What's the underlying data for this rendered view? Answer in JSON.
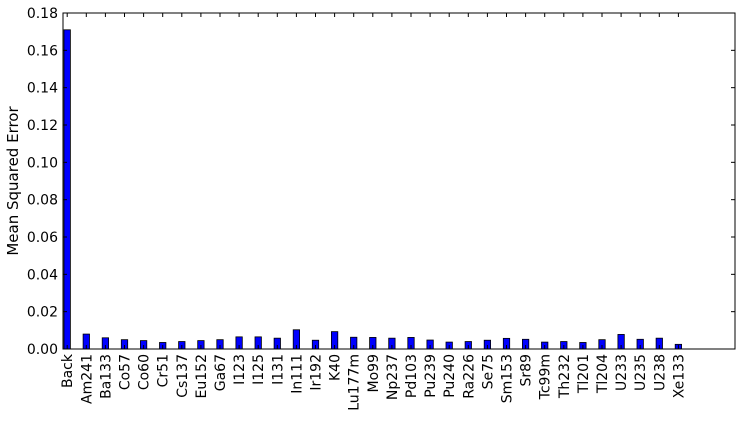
{
  "chart_data": {
    "type": "bar",
    "title": "",
    "xlabel": "",
    "ylabel": "Mean Squared Error",
    "ylim": [
      0,
      0.18
    ],
    "yticks": [
      "0.00",
      "0.02",
      "0.04",
      "0.06",
      "0.08",
      "0.10",
      "0.12",
      "0.14",
      "0.16",
      "0.18"
    ],
    "grid": false,
    "bar_color": "#0000ff",
    "categories": [
      "Back",
      "Am241",
      "Ba133",
      "Co57",
      "Co60",
      "Cr51",
      "Cs137",
      "Eu152",
      "Ga67",
      "I123",
      "I125",
      "I131",
      "In111",
      "Ir192",
      "K40",
      "Lu177m",
      "Mo99",
      "Np237",
      "Pd103",
      "Pu239",
      "Pu240",
      "Ra226",
      "Se75",
      "Sm153",
      "Sr89",
      "Tc99m",
      "Th232",
      "Tl201",
      "Tl204",
      "U233",
      "U235",
      "U238",
      "Xe133"
    ],
    "values": [
      0.171,
      0.008,
      0.006,
      0.005,
      0.0045,
      0.0035,
      0.004,
      0.0045,
      0.005,
      0.0065,
      0.0065,
      0.0058,
      0.0103,
      0.0047,
      0.0093,
      0.0063,
      0.0062,
      0.0058,
      0.0062,
      0.0048,
      0.0037,
      0.004,
      0.0047,
      0.0057,
      0.0052,
      0.0037,
      0.004,
      0.0035,
      0.005,
      0.0078,
      0.0052,
      0.0058,
      0.0025
    ]
  }
}
